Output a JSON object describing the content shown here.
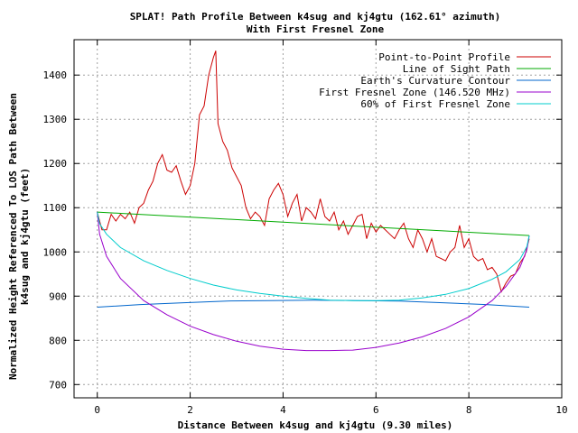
{
  "chart_data": {
    "type": "line",
    "title": "SPLAT! Path Profile Between k4sug and kj4gtu (162.61° azimuth)",
    "subtitle": "With First Fresnel Zone",
    "xlabel": "Distance Between k4sug and kj4gtu (9.30 miles)",
    "ylabel_line1": "Normalized Height Referenced To LOS Path Between",
    "ylabel_line2": "k4sug and kj4gtu (feet)",
    "xlim": [
      -0.5,
      10
    ],
    "ylim": [
      670,
      1480
    ],
    "xticks": [
      0,
      2,
      4,
      6,
      8,
      10
    ],
    "yticks": [
      700,
      800,
      900,
      1000,
      1100,
      1200,
      1300,
      1400
    ],
    "grid": true,
    "legend_position": "top-right",
    "series": [
      {
        "name": "Point-to-Point Profile",
        "color": "#cc0000",
        "x": [
          0,
          0.1,
          0.2,
          0.3,
          0.4,
          0.5,
          0.6,
          0.7,
          0.8,
          0.9,
          1.0,
          1.1,
          1.2,
          1.3,
          1.4,
          1.5,
          1.6,
          1.7,
          1.8,
          1.9,
          2.0,
          2.1,
          2.2,
          2.3,
          2.4,
          2.5,
          2.55,
          2.6,
          2.7,
          2.8,
          2.9,
          3.0,
          3.1,
          3.2,
          3.3,
          3.4,
          3.5,
          3.6,
          3.7,
          3.8,
          3.9,
          4.0,
          4.1,
          4.2,
          4.3,
          4.4,
          4.5,
          4.6,
          4.7,
          4.8,
          4.9,
          5.0,
          5.1,
          5.2,
          5.3,
          5.4,
          5.5,
          5.6,
          5.7,
          5.8,
          5.9,
          6.0,
          6.1,
          6.2,
          6.3,
          6.4,
          6.5,
          6.6,
          6.7,
          6.8,
          6.9,
          7.0,
          7.1,
          7.2,
          7.3,
          7.4,
          7.5,
          7.6,
          7.7,
          7.8,
          7.9,
          8.0,
          8.1,
          8.2,
          8.3,
          8.4,
          8.5,
          8.6,
          8.7,
          8.8,
          8.9,
          9.0,
          9.1,
          9.2,
          9.3
        ],
        "values": [
          1090,
          1050,
          1050,
          1085,
          1070,
          1085,
          1075,
          1090,
          1065,
          1100,
          1110,
          1140,
          1160,
          1200,
          1220,
          1185,
          1180,
          1195,
          1160,
          1130,
          1150,
          1200,
          1310,
          1330,
          1400,
          1440,
          1455,
          1290,
          1250,
          1230,
          1190,
          1170,
          1150,
          1100,
          1075,
          1090,
          1080,
          1060,
          1120,
          1140,
          1155,
          1130,
          1080,
          1110,
          1130,
          1070,
          1100,
          1090,
          1075,
          1120,
          1080,
          1070,
          1090,
          1050,
          1070,
          1040,
          1060,
          1080,
          1085,
          1030,
          1065,
          1045,
          1060,
          1050,
          1040,
          1030,
          1050,
          1065,
          1030,
          1010,
          1050,
          1030,
          1000,
          1030,
          990,
          985,
          980,
          1000,
          1010,
          1060,
          1010,
          1030,
          990,
          980,
          985,
          960,
          965,
          950,
          910,
          930,
          945,
          950,
          975,
          990,
          1030
        ]
      },
      {
        "name": "Line of Sight Path",
        "color": "#00aa00",
        "x": [
          0,
          9.3
        ],
        "values": [
          1090,
          1037
        ]
      },
      {
        "name": "Earth's Curvature Contour",
        "color": "#0066cc",
        "x": [
          0,
          0.93,
          1.86,
          2.79,
          3.72,
          4.65,
          5.58,
          6.51,
          7.44,
          8.37,
          9.3
        ],
        "values": [
          875,
          881,
          885,
          889,
          890,
          891,
          890,
          889,
          885,
          881,
          875
        ]
      },
      {
        "name": "First Fresnel Zone (146.520 MHz)",
        "color": "#9900cc",
        "x": [
          0,
          0.05,
          0.2,
          0.5,
          1.0,
          1.5,
          2.0,
          2.5,
          3.0,
          3.5,
          4.0,
          4.5,
          5.0,
          5.5,
          6.0,
          6.5,
          7.0,
          7.5,
          8.0,
          8.5,
          8.8,
          9.1,
          9.25,
          9.3
        ],
        "values": [
          1090,
          1040,
          990,
          940,
          890,
          858,
          832,
          813,
          798,
          787,
          780,
          777,
          777,
          778,
          784,
          794,
          808,
          827,
          853,
          890,
          922,
          965,
          1005,
          1037
        ]
      },
      {
        "name": "60% of First Fresnel Zone",
        "color": "#00cccc",
        "x": [
          0,
          0.05,
          0.2,
          0.5,
          1.0,
          1.5,
          2.0,
          2.5,
          3.0,
          3.5,
          4.0,
          4.5,
          5.0,
          5.5,
          6.0,
          6.5,
          7.0,
          7.5,
          8.0,
          8.5,
          8.8,
          9.1,
          9.25,
          9.3
        ],
        "values": [
          1090,
          1064,
          1040,
          1010,
          980,
          958,
          940,
          925,
          914,
          906,
          900,
          895,
          891,
          890,
          890,
          891,
          896,
          904,
          917,
          938,
          955,
          983,
          1012,
          1037
        ]
      }
    ]
  }
}
